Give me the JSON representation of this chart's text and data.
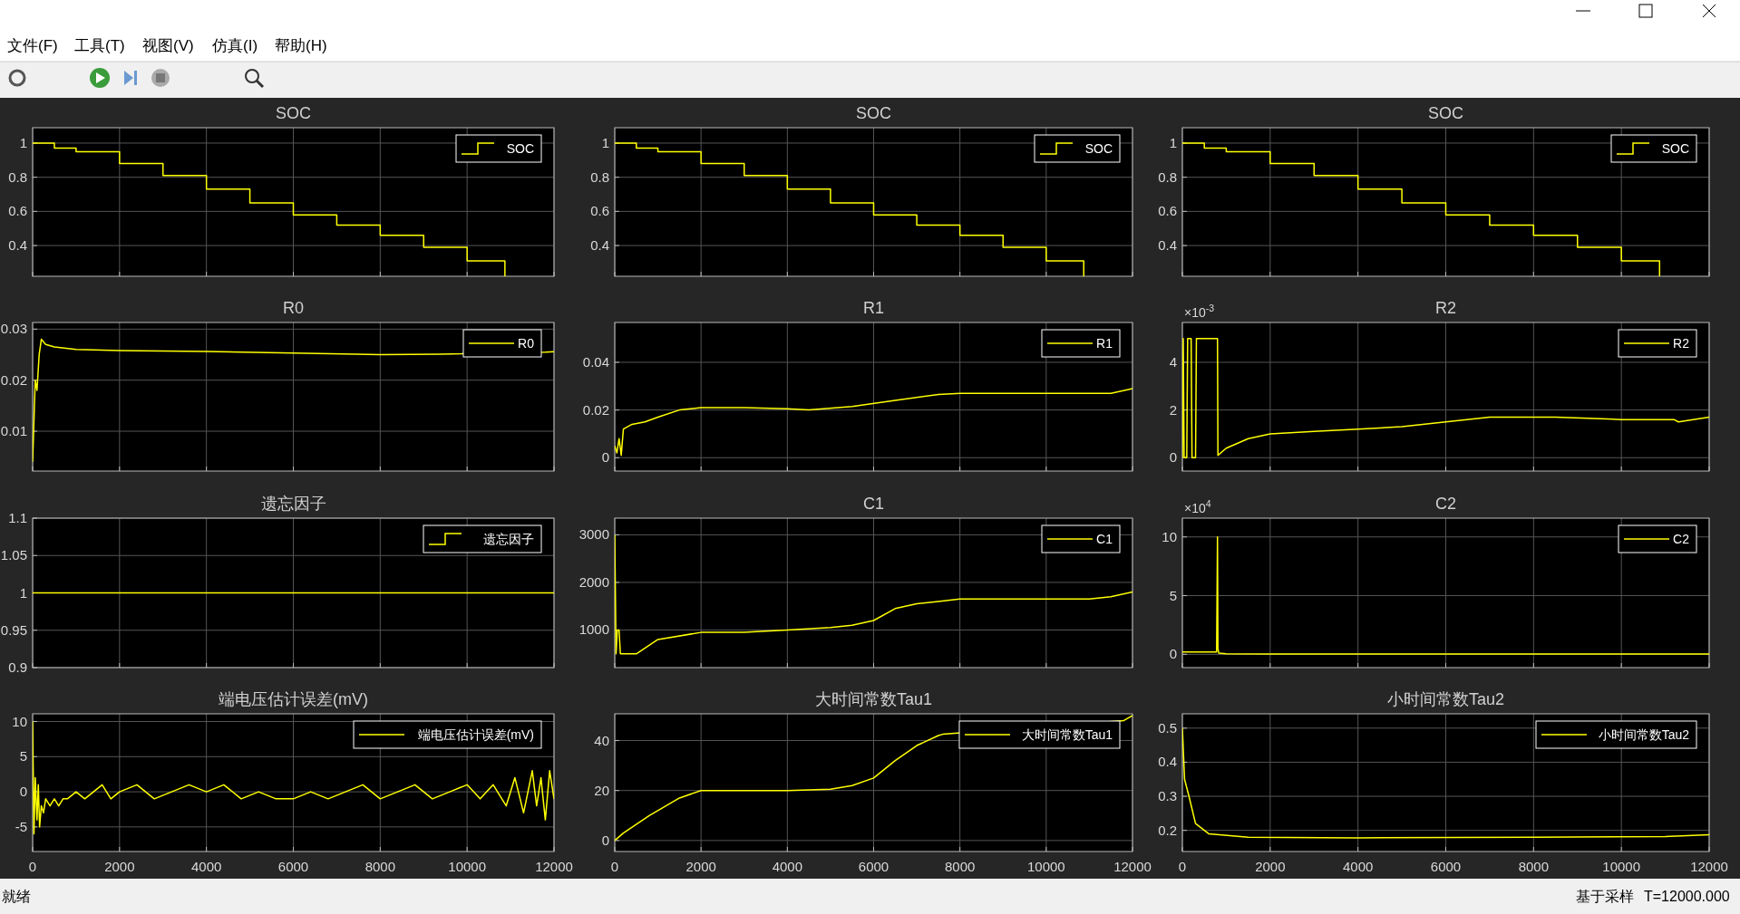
{
  "chart_data": [
    {
      "type": "other",
      "annotations": [
        "文件(F)",
        "工具(T)",
        "视图(V)",
        "仿真(I)",
        "帮助(H)",
        "就绪",
        "基于采样",
        "T=12000.000"
      ]
    },
    {
      "type": "step",
      "title": "SOC",
      "x": [
        0,
        500,
        1000,
        2000,
        3000,
        4000,
        5000,
        6000,
        7000,
        8000,
        9000,
        10000,
        10870
      ],
      "series": [
        {
          "name": "SOC",
          "color": "#ffff00",
          "values": [
            1,
            0.97,
            0.95,
            0.88,
            0.81,
            0.73,
            0.65,
            0.58,
            0.52,
            0.46,
            0.39,
            0.31,
            0.22
          ]
        }
      ],
      "xlim": [
        0,
        12000
      ],
      "xticks": [
        0,
        2000,
        4000,
        6000,
        8000,
        10000,
        12000
      ],
      "ylim": [
        0.22,
        1.09
      ],
      "yticks": [
        0.4,
        0.6,
        0.8,
        1
      ],
      "grid": true,
      "legend": "top right",
      "tick_labels": "y"
    },
    {
      "type": "step",
      "title": "SOC",
      "x": [
        0,
        500,
        1000,
        2000,
        3000,
        4000,
        5000,
        6000,
        7000,
        8000,
        9000,
        10000,
        10870
      ],
      "series": [
        {
          "name": "SOC",
          "color": "#ffff00",
          "values": [
            1,
            0.97,
            0.95,
            0.88,
            0.81,
            0.73,
            0.65,
            0.58,
            0.52,
            0.46,
            0.39,
            0.31,
            0.22
          ]
        }
      ],
      "xlim": [
        0,
        12000
      ],
      "xticks": [
        0,
        2000,
        4000,
        6000,
        8000,
        10000,
        12000
      ],
      "ylim": [
        0.22,
        1.09
      ],
      "yticks": [
        0.4,
        0.6,
        0.8,
        1
      ],
      "grid": true,
      "legend": "top right",
      "tick_labels": "y"
    },
    {
      "type": "step",
      "title": "SOC",
      "x": [
        0,
        500,
        1000,
        2000,
        3000,
        4000,
        5000,
        6000,
        7000,
        8000,
        9000,
        10000,
        10870
      ],
      "series": [
        {
          "name": "SOC",
          "color": "#ffff00",
          "values": [
            1,
            0.97,
            0.95,
            0.88,
            0.81,
            0.73,
            0.65,
            0.58,
            0.52,
            0.46,
            0.39,
            0.31,
            0.22
          ]
        }
      ],
      "xlim": [
        0,
        12000
      ],
      "xticks": [
        0,
        2000,
        4000,
        6000,
        8000,
        10000,
        12000
      ],
      "ylim": [
        0.22,
        1.09
      ],
      "yticks": [
        0.4,
        0.6,
        0.8,
        1
      ],
      "grid": true,
      "legend": "top right",
      "tick_labels": "y"
    },
    {
      "type": "line",
      "title": "R0",
      "x": [
        0,
        30,
        60,
        100,
        150,
        200,
        300,
        500,
        1000,
        2000,
        4000,
        6000,
        8000,
        9400,
        11800,
        12000
      ],
      "series": [
        {
          "name": "R0",
          "color": "#ffff00",
          "values": [
            0.004,
            0.012,
            0.02,
            0.018,
            0.025,
            0.028,
            0.027,
            0.0265,
            0.026,
            0.0258,
            0.0256,
            0.0253,
            0.025,
            0.0251,
            0.0255,
            0.0256
          ]
        }
      ],
      "xlim": [
        0,
        12000
      ],
      "xticks": [
        0,
        2000,
        4000,
        6000,
        8000,
        10000,
        12000
      ],
      "ylim": [
        0.0022,
        0.0313
      ],
      "yticks": [
        0.01,
        0.02,
        0.03
      ],
      "grid": true,
      "legend": "top right",
      "tick_labels": "y"
    },
    {
      "type": "line",
      "title": "R1",
      "x": [
        0,
        50,
        100,
        150,
        200,
        400,
        700,
        1000,
        1500,
        2000,
        3000,
        4000,
        4500,
        5500,
        6500,
        7500,
        8000,
        9000,
        10000,
        11000,
        11500,
        12000
      ],
      "series": [
        {
          "name": "R1",
          "color": "#ffff00",
          "values": [
            0.005,
            0.002,
            0.008,
            0.001,
            0.012,
            0.014,
            0.015,
            0.017,
            0.02,
            0.021,
            0.021,
            0.0205,
            0.02,
            0.0215,
            0.024,
            0.0265,
            0.027,
            0.027,
            0.027,
            0.027,
            0.027,
            0.029
          ]
        }
      ],
      "xlim": [
        0,
        12000
      ],
      "xticks": [
        0,
        2000,
        4000,
        6000,
        8000,
        10000,
        12000
      ],
      "ylim": [
        -0.0056,
        0.0567
      ],
      "yticks": [
        0,
        0.02,
        0.04
      ],
      "grid": true,
      "legend": "top right",
      "tick_labels": "y"
    },
    {
      "type": "line",
      "title": "R2",
      "x": [
        0,
        20,
        40,
        100,
        120,
        200,
        220,
        300,
        320,
        800,
        810,
        1000,
        1500,
        2000,
        3000,
        4000,
        5000,
        6000,
        7000,
        8500,
        10000,
        11200,
        11300,
        12000
      ],
      "series": [
        {
          "name": "R2",
          "color": "#ffff00",
          "values": [
            0,
            5,
            0,
            0,
            5,
            5,
            0,
            0,
            5,
            5,
            0.1,
            0.4,
            0.8,
            1,
            1.1,
            1.2,
            1.3,
            1.5,
            1.7,
            1.7,
            1.6,
            1.6,
            1.5,
            1.7
          ]
        }
      ],
      "xlim": [
        0,
        12000
      ],
      "xticks": [
        0,
        2000,
        4000,
        6000,
        8000,
        10000,
        12000
      ],
      "ylim": [
        -0.56,
        5.67
      ],
      "yticks": [
        0,
        2,
        4
      ],
      "grid": true,
      "legend": "top right",
      "tick_labels": "y",
      "annotations": [
        "×10$^{-3}$"
      ]
    },
    {
      "type": "step",
      "title": "遗忘因子",
      "x": [
        0,
        12000
      ],
      "series": [
        {
          "name": "遗忘因子",
          "color": "#ffff00",
          "values": [
            1,
            1
          ]
        }
      ],
      "xlim": [
        0,
        12000
      ],
      "xticks": [
        0,
        2000,
        4000,
        6000,
        8000,
        10000,
        12000
      ],
      "ylim": [
        0.9,
        1.1
      ],
      "yticks": [
        0.9,
        0.95,
        1,
        1.05,
        1.1
      ],
      "grid": true,
      "legend": "top right",
      "tick_labels": "y"
    },
    {
      "type": "line",
      "title": "C1",
      "x": [
        0,
        30,
        60,
        100,
        130,
        160,
        500,
        1000,
        2000,
        3000,
        4000,
        5000,
        5500,
        6000,
        6500,
        7000,
        7500,
        8000,
        9000,
        10000,
        11000,
        11500,
        12000
      ],
      "series": [
        {
          "name": "C1",
          "color": "#ffff00",
          "values": [
            3000,
            500,
            1000,
            1000,
            500,
            500,
            500,
            800,
            950,
            950,
            1000,
            1050,
            1100,
            1200,
            1450,
            1550,
            1600,
            1650,
            1650,
            1650,
            1650,
            1700,
            1800
          ]
        }
      ],
      "xlim": [
        0,
        12000
      ],
      "xticks": [
        0,
        2000,
        4000,
        6000,
        8000,
        10000,
        12000
      ],
      "ylim": [
        210,
        3350
      ],
      "yticks": [
        1000,
        2000,
        3000
      ],
      "grid": true,
      "legend": "top right",
      "tick_labels": "y"
    },
    {
      "type": "line",
      "title": "C2",
      "x": [
        0,
        780,
        800,
        810,
        830,
        1000,
        2000,
        4000,
        6000,
        8000,
        10000,
        12000
      ],
      "series": [
        {
          "name": "C2",
          "color": "#ffff00",
          "values": [
            0.2,
            0.2,
            10,
            0.5,
            0.1,
            0.05,
            0.03,
            0.03,
            0.03,
            0.03,
            0.03,
            0.03
          ]
        }
      ],
      "xlim": [
        0,
        12000
      ],
      "xticks": [
        0,
        2000,
        4000,
        6000,
        8000,
        10000,
        12000
      ],
      "ylim": [
        -1.13,
        11.6
      ],
      "yticks": [
        0,
        5,
        10
      ],
      "grid": true,
      "legend": "top right",
      "tick_labels": "y",
      "annotations": [
        "×10$^{4}$"
      ]
    },
    {
      "type": "line",
      "title": "端电压估计误差(mV)",
      "x": [
        0,
        30,
        60,
        100,
        130,
        160,
        200,
        250,
        300,
        400,
        500,
        600,
        700,
        800,
        1000,
        1200,
        1400,
        1600,
        1800,
        2000,
        2400,
        2800,
        3200,
        3600,
        4000,
        4400,
        4800,
        5200,
        5600,
        6000,
        6400,
        6800,
        7200,
        7600,
        8000,
        8400,
        8800,
        9200,
        9600,
        10000,
        10300,
        10600,
        10900,
        11100,
        11300,
        11500,
        11600,
        11700,
        11800,
        11900,
        12000
      ],
      "series": [
        {
          "name": "端电压估计误差(mV)",
          "color": "#ffff00",
          "values": [
            10,
            -6,
            2,
            -4,
            1,
            -5,
            -2,
            -3,
            -1,
            -2,
            -1,
            -2,
            -1,
            -1,
            0,
            -1,
            0,
            1,
            -1,
            0,
            1,
            -1,
            0,
            1,
            0,
            1,
            -1,
            0,
            -1,
            -1,
            0,
            -1,
            0,
            1,
            -1,
            0,
            1,
            -1,
            0,
            1,
            -1,
            1,
            -2,
            2,
            -3,
            3,
            -2,
            2,
            -4,
            3,
            -1
          ]
        }
      ],
      "xlim": [
        0,
        12000
      ],
      "xticks": [
        0,
        2000,
        4000,
        6000,
        8000,
        10000,
        12000
      ],
      "ylim": [
        -8.5,
        11.1
      ],
      "yticks": [
        -5,
        0,
        5,
        10
      ],
      "grid": true,
      "legend": "top right"
    },
    {
      "type": "line",
      "title": "大时间常数Tau1",
      "x": [
        0,
        200,
        800,
        1500,
        2000,
        3000,
        4000,
        5000,
        5500,
        6000,
        6500,
        7000,
        7500,
        7600,
        11800,
        12000
      ],
      "series": [
        {
          "name": "大时间常数Tau1",
          "color": "#ffff00",
          "values": [
            0,
            3,
            10,
            17,
            20,
            20,
            20,
            20.5,
            22,
            25,
            32,
            38,
            42,
            42.5,
            48,
            50
          ]
        }
      ],
      "xlim": [
        0,
        12000
      ],
      "xticks": [
        0,
        2000,
        4000,
        6000,
        8000,
        10000,
        12000
      ],
      "ylim": [
        -4.4,
        50.7
      ],
      "yticks": [
        0,
        20,
        40
      ],
      "grid": true,
      "legend": "top right"
    },
    {
      "type": "line",
      "title": "小时间常数Tau2",
      "x": [
        0,
        50,
        150,
        300,
        600,
        1500,
        4000,
        8000,
        11000,
        12000
      ],
      "series": [
        {
          "name": "小时间常数Tau2",
          "color": "#ffff00",
          "values": [
            0.5,
            0.35,
            0.3,
            0.22,
            0.19,
            0.18,
            0.178,
            0.18,
            0.182,
            0.187
          ]
        }
      ],
      "xlim": [
        0,
        12000
      ],
      "xticks": [
        0,
        2000,
        4000,
        6000,
        8000,
        10000,
        12000
      ],
      "ylim": [
        0.138,
        0.542
      ],
      "yticks": [
        0.2,
        0.3,
        0.4,
        0.5
      ],
      "grid": true,
      "legend": "top right"
    }
  ]
}
